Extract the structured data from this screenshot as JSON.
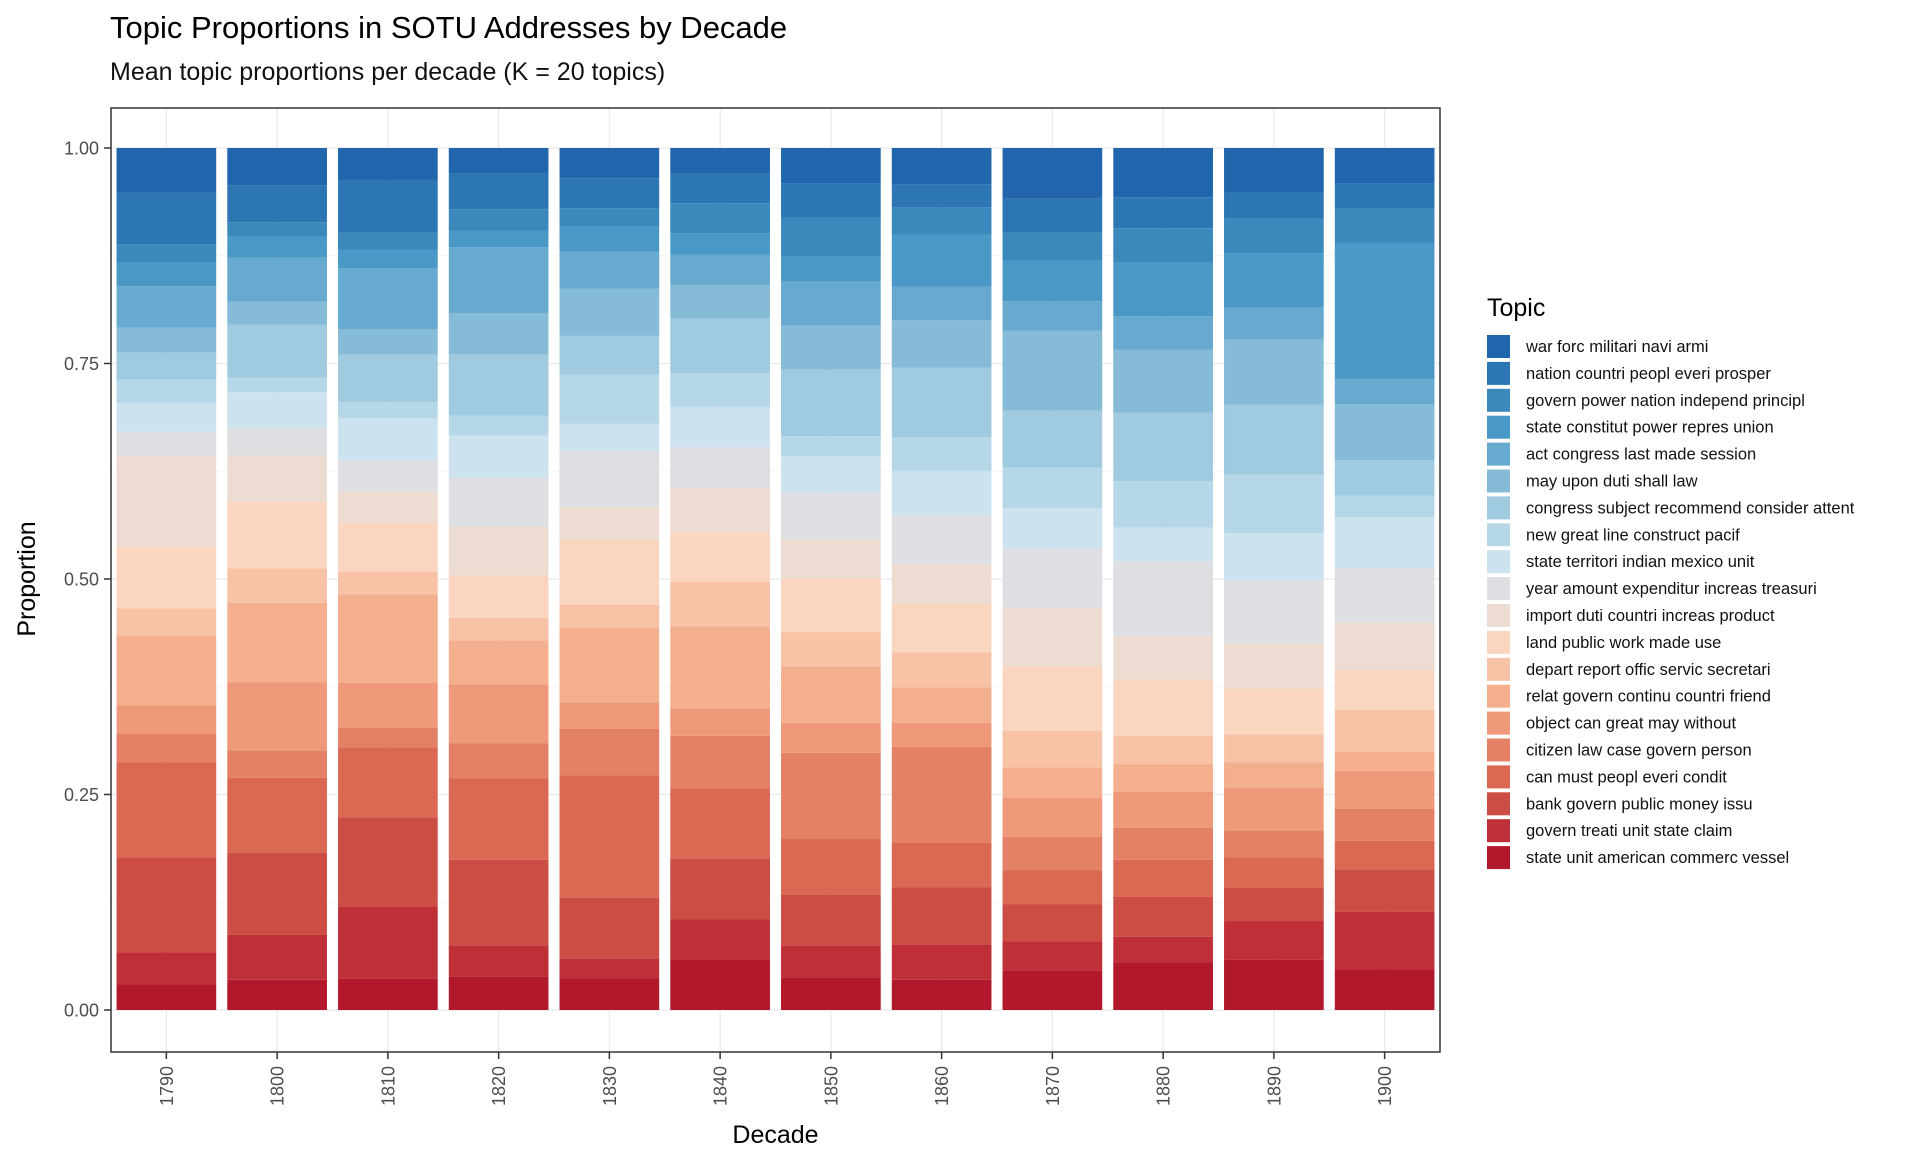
{
  "title": "Topic Proportions in SOTU Addresses by Decade",
  "subtitle": "Mean topic proportions per decade (K = 20 topics)",
  "chart_data": {
    "type": "bar",
    "stacked": true,
    "normalized": true,
    "title": "Topic Proportions in SOTU Addresses by Decade",
    "subtitle": "Mean topic proportions per decade (K = 20 topics)",
    "xlabel": "Decade",
    "ylabel": "Proportion",
    "ylim": [
      0,
      1
    ],
    "yticks": [
      "0.00",
      "0.25",
      "0.50",
      "0.75",
      "1.00"
    ],
    "ytick_values": [
      0,
      0.25,
      0.5,
      0.75,
      1.0
    ],
    "x_tick_rotation": "vertical",
    "grid": true,
    "legend_title": "Topic",
    "legend_position": "right",
    "categories": [
      "1790",
      "1800",
      "1810",
      "1820",
      "1830",
      "1840",
      "1850",
      "1860",
      "1870",
      "1880",
      "1890",
      "1900"
    ],
    "series_order_note": "series listed top of stack to bottom",
    "series": [
      {
        "name": "war forc militari navi armi",
        "color": "#2166ac",
        "values": [
          0.052,
          0.043,
          0.037,
          0.029,
          0.035,
          0.029,
          0.041,
          0.042,
          0.059,
          0.057,
          0.051,
          0.041
        ]
      },
      {
        "name": "nation countri peopl everi prosper",
        "color": "#2c76b3",
        "values": [
          0.06,
          0.043,
          0.061,
          0.042,
          0.035,
          0.035,
          0.04,
          0.027,
          0.039,
          0.036,
          0.031,
          0.029
        ]
      },
      {
        "name": "govern power nation independ principl",
        "color": "#3a88bc",
        "values": [
          0.021,
          0.016,
          0.02,
          0.025,
          0.021,
          0.035,
          0.045,
          0.031,
          0.033,
          0.04,
          0.04,
          0.04
        ]
      },
      {
        "name": "state constitut power repres union",
        "color": "#4a98c5",
        "values": [
          0.027,
          0.025,
          0.021,
          0.019,
          0.029,
          0.025,
          0.029,
          0.06,
          0.047,
          0.062,
          0.063,
          0.158
        ]
      },
      {
        "name": "act congress last made session",
        "color": "#67a9cf",
        "values": [
          0.048,
          0.051,
          0.071,
          0.076,
          0.043,
          0.035,
          0.051,
          0.039,
          0.034,
          0.039,
          0.037,
          0.029
        ]
      },
      {
        "name": "may upon duti shall law",
        "color": "#86bbd8",
        "values": [
          0.029,
          0.027,
          0.029,
          0.048,
          0.055,
          0.039,
          0.051,
          0.055,
          0.093,
          0.073,
          0.075,
          0.065
        ]
      },
      {
        "name": "congress subject recommend consider attent",
        "color": "#9fcae0",
        "values": [
          0.031,
          0.061,
          0.055,
          0.071,
          0.045,
          0.063,
          0.077,
          0.08,
          0.066,
          0.079,
          0.081,
          0.041
        ]
      },
      {
        "name": "new great line construct pacif",
        "color": "#b6d7e8",
        "values": [
          0.027,
          0.017,
          0.019,
          0.023,
          0.057,
          0.039,
          0.023,
          0.039,
          0.047,
          0.054,
          0.068,
          0.025
        ]
      },
      {
        "name": "state territori indian mexico unit",
        "color": "#cde2ef",
        "values": [
          0.033,
          0.041,
          0.048,
          0.049,
          0.031,
          0.047,
          0.043,
          0.051,
          0.047,
          0.039,
          0.054,
          0.059
        ]
      },
      {
        "name": "year amount expenditur increas treasuri",
        "color": "#dddfe2",
        "values": [
          0.029,
          0.032,
          0.036,
          0.056,
          0.065,
          0.047,
          0.053,
          0.057,
          0.069,
          0.087,
          0.073,
          0.063
        ]
      },
      {
        "name": "import duti countri increas product",
        "color": "#eddcd2",
        "values": [
          0.105,
          0.054,
          0.037,
          0.057,
          0.038,
          0.052,
          0.046,
          0.045,
          0.068,
          0.05,
          0.053,
          0.055
        ]
      },
      {
        "name": "land public work made use",
        "color": "#fad6c1",
        "values": [
          0.071,
          0.077,
          0.056,
          0.049,
          0.076,
          0.057,
          0.062,
          0.057,
          0.075,
          0.065,
          0.053,
          0.046
        ]
      },
      {
        "name": "depart report offic servic secretari",
        "color": "#f8c2a7",
        "values": [
          0.031,
          0.04,
          0.027,
          0.026,
          0.026,
          0.052,
          0.04,
          0.04,
          0.042,
          0.033,
          0.032,
          0.049
        ]
      },
      {
        "name": "relat govern continu countri friend",
        "color": "#f4af8e",
        "values": [
          0.081,
          0.092,
          0.102,
          0.051,
          0.087,
          0.095,
          0.065,
          0.041,
          0.035,
          0.032,
          0.03,
          0.022
        ]
      },
      {
        "name": "object can great may without",
        "color": "#ee9a7a",
        "values": [
          0.033,
          0.079,
          0.052,
          0.068,
          0.031,
          0.032,
          0.035,
          0.028,
          0.046,
          0.042,
          0.049,
          0.044
        ]
      },
      {
        "name": "citizen law case govern person",
        "color": "#e48066",
        "values": [
          0.033,
          0.032,
          0.023,
          0.041,
          0.054,
          0.061,
          0.099,
          0.111,
          0.039,
          0.037,
          0.031,
          0.037
        ]
      },
      {
        "name": "can must peopl everi condit",
        "color": "#da6853",
        "values": [
          0.111,
          0.087,
          0.081,
          0.094,
          0.142,
          0.081,
          0.065,
          0.051,
          0.039,
          0.043,
          0.035,
          0.033
        ]
      },
      {
        "name": "bank govern public money issu",
        "color": "#cb4d44",
        "values": [
          0.109,
          0.095,
          0.103,
          0.099,
          0.07,
          0.071,
          0.059,
          0.066,
          0.043,
          0.046,
          0.039,
          0.049
        ]
      },
      {
        "name": "govern treati unit state claim",
        "color": "#bf2f38",
        "values": [
          0.037,
          0.052,
          0.084,
          0.036,
          0.023,
          0.047,
          0.037,
          0.041,
          0.034,
          0.03,
          0.045,
          0.067
        ]
      },
      {
        "name": "state unit american commerc vessel",
        "color": "#b2182b",
        "values": [
          0.03,
          0.035,
          0.036,
          0.039,
          0.037,
          0.058,
          0.038,
          0.035,
          0.046,
          0.055,
          0.058,
          0.047
        ]
      }
    ]
  }
}
